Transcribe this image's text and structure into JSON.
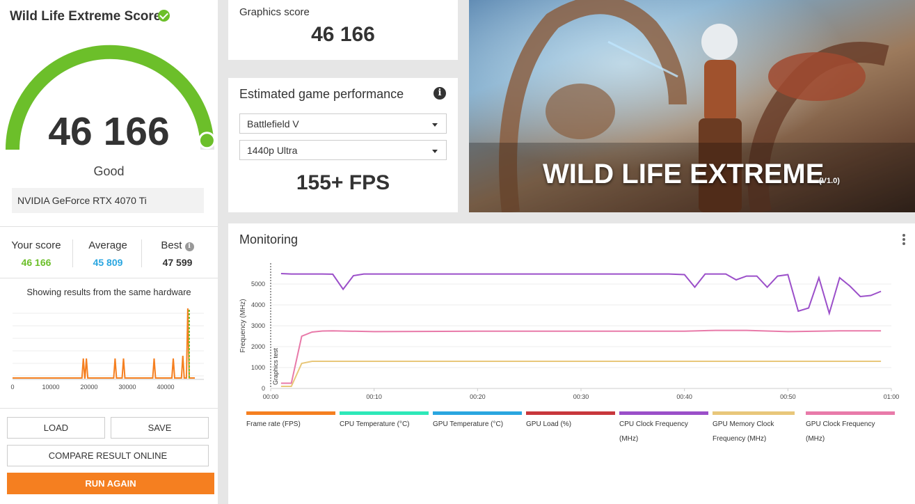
{
  "score_panel": {
    "title": "Wild Life Extreme Score",
    "score": "46 166",
    "rating": "Good",
    "gpu": "NVIDIA GeForce RTX 4070 Ti",
    "gauge_fraction": 0.97,
    "stats": {
      "your_label": "Your score",
      "your_value": "46 166",
      "avg_label": "Average",
      "avg_value": "45 809",
      "best_label": "Best",
      "best_value": "47 599"
    },
    "same_hardware": "Showing results from the same hardware",
    "colors": {
      "green": "#6cbf2a",
      "blue": "#2aa6e0",
      "orange": "#f57f20"
    }
  },
  "distribution_chart": {
    "x_ticks": [
      "0",
      "10000",
      "20000",
      "30000",
      "40000"
    ],
    "xlim": [
      0,
      50000
    ],
    "spikes": [
      {
        "x": 18500,
        "h": 0.28
      },
      {
        "x": 19300,
        "h": 0.28
      },
      {
        "x": 26800,
        "h": 0.28
      },
      {
        "x": 29000,
        "h": 0.28
      },
      {
        "x": 37000,
        "h": 0.28
      },
      {
        "x": 42000,
        "h": 0.28
      },
      {
        "x": 44500,
        "h": 0.32
      },
      {
        "x": 45800,
        "h": 1.0
      }
    ],
    "your_score_x": 46166
  },
  "buttons": {
    "load": "LOAD",
    "save": "SAVE",
    "compare": "COMPARE RESULT ONLINE",
    "run_again": "RUN AGAIN"
  },
  "graphics_score": {
    "label": "Graphics score",
    "value": "46 166"
  },
  "estimated": {
    "title": "Estimated game performance",
    "game": "Battlefield V",
    "preset": "1440p Ultra",
    "fps": "155+ FPS"
  },
  "banner": {
    "title": "WILD LIFE EXTREME",
    "version": "(V1.0)"
  },
  "monitoring": {
    "title": "Monitoring",
    "chart_data": {
      "type": "line",
      "ylabel": "Frequency (MHz)",
      "xlabel": "",
      "ylim": [
        0,
        6000
      ],
      "y_ticks": [
        0,
        1000,
        2000,
        3000,
        4000,
        5000
      ],
      "x_ticks": [
        "00:00",
        "00:10",
        "00:20",
        "00:30",
        "00:40",
        "00:50",
        "01:00"
      ],
      "xlim": [
        0,
        60
      ],
      "marker": {
        "x": 0,
        "label": "Graphics test"
      },
      "series": [
        {
          "name": "CPU Clock Frequency (MHz)",
          "color": "#9b4fc9",
          "x": [
            1,
            2,
            3,
            4,
            5,
            6,
            7,
            8,
            9,
            10,
            20,
            30,
            38.5,
            40,
            41,
            42,
            43,
            44,
            45,
            46,
            47,
            48,
            49,
            50,
            51,
            52,
            53,
            54,
            55,
            56,
            57,
            58,
            59
          ],
          "y": [
            5500,
            5480,
            5480,
            5480,
            5480,
            5470,
            4750,
            5400,
            5480,
            5480,
            5480,
            5480,
            5480,
            5450,
            4850,
            5480,
            5480,
            5480,
            5200,
            5380,
            5380,
            4850,
            5380,
            5450,
            3700,
            3850,
            5300,
            3600,
            5300,
            4900,
            4400,
            4450,
            4650
          ]
        },
        {
          "name": "GPU Clock Frequency (MHz)",
          "color": "#e87aa9",
          "x": [
            1,
            2,
            3,
            4,
            5,
            6,
            10,
            20,
            30,
            40,
            43,
            46,
            50,
            55,
            59
          ],
          "y": [
            250,
            250,
            2500,
            2700,
            2750,
            2760,
            2720,
            2740,
            2740,
            2740,
            2780,
            2780,
            2720,
            2760,
            2760
          ]
        },
        {
          "name": "GPU Memory Clock Frequency (MHz)",
          "color": "#e8c77a",
          "x": [
            1,
            2,
            3,
            4,
            10,
            30,
            59
          ],
          "y": [
            100,
            100,
            1200,
            1300,
            1300,
            1300,
            1300
          ]
        }
      ]
    },
    "legend": [
      {
        "label": "Frame rate (FPS)",
        "color": "#f57f20"
      },
      {
        "label": "CPU Temperature (°C)",
        "color": "#2ee8b8"
      },
      {
        "label": "GPU Temperature (°C)",
        "color": "#2aa6e0"
      },
      {
        "label": "GPU Load (%)",
        "color": "#c8373b"
      },
      {
        "label": "CPU Clock Frequency (MHz)",
        "color": "#9b4fc9"
      },
      {
        "label": "GPU Memory Clock Frequency (MHz)",
        "color": "#e8c77a"
      },
      {
        "label": "GPU Clock Frequency (MHz)",
        "color": "#e87aa9"
      }
    ]
  }
}
